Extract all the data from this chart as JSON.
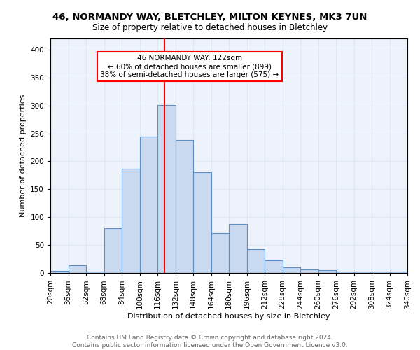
{
  "title1": "46, NORMANDY WAY, BLETCHLEY, MILTON KEYNES, MK3 7UN",
  "title2": "Size of property relative to detached houses in Bletchley",
  "xlabel": "Distribution of detached houses by size in Bletchley",
  "ylabel": "Number of detached properties",
  "footer1": "Contains HM Land Registry data © Crown copyright and database right 2024.",
  "footer2": "Contains public sector information licensed under the Open Government Licence v3.0.",
  "bar_color": "#c9d9f0",
  "bar_edge_color": "#5a8fc5",
  "property_line_x": 122,
  "annotation_line1": "46 NORMANDY WAY: 122sqm",
  "annotation_line2": "← 60% of detached houses are smaller (899)",
  "annotation_line3": "38% of semi-detached houses are larger (575) →",
  "bin_edges": [
    20,
    36,
    52,
    68,
    84,
    100,
    116,
    132,
    148,
    164,
    180,
    196,
    212,
    228,
    244,
    260,
    276,
    292,
    308,
    324,
    340
  ],
  "bin_heights": [
    4,
    14,
    2,
    80,
    187,
    245,
    301,
    238,
    180,
    72,
    88,
    43,
    23,
    10,
    6,
    5,
    3,
    3,
    3,
    3
  ],
  "xlim_left": 20,
  "xlim_right": 340,
  "ylim_top": 420,
  "yticks": [
    0,
    50,
    100,
    150,
    200,
    250,
    300,
    350,
    400
  ],
  "grid_color": "#dce6f5",
  "background_color": "#eef2fa",
  "title1_fontsize": 9.5,
  "title2_fontsize": 8.5,
  "ylabel_fontsize": 8.0,
  "xlabel_fontsize": 8.0,
  "tick_fontsize": 7.5,
  "footer_fontsize": 6.5,
  "annotation_fontsize": 7.5
}
